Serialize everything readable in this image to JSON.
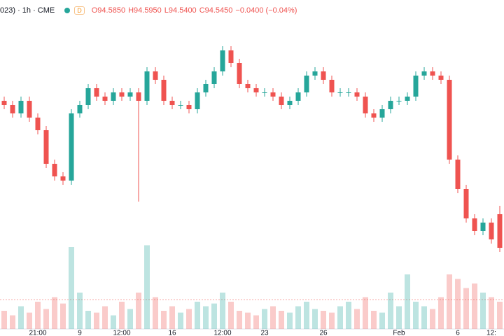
{
  "chart_data": {
    "type": "candlestick",
    "symbol": "023) · 1h · CME",
    "badge": "D",
    "quote": [
      "O94.5850",
      "H94.5950",
      "L94.5400",
      "C94.5450",
      "−0.0400 (−0.04%)"
    ],
    "up_color": "#26a69a",
    "down_color": "#ef5350",
    "categories": [
      null,
      null,
      null,
      null,
      "21:00",
      null,
      null,
      null,
      null,
      "9",
      null,
      null,
      null,
      null,
      "12:00",
      null,
      null,
      null,
      null,
      null,
      "16",
      null,
      null,
      null,
      null,
      null,
      "12:00",
      null,
      null,
      null,
      null,
      "23",
      null,
      null,
      null,
      null,
      null,
      null,
      "26",
      null,
      null,
      null,
      null,
      null,
      null,
      null,
      null,
      "Feb",
      null,
      null,
      null,
      null,
      null,
      null,
      "6",
      null,
      null,
      null,
      "12:",
      null
    ],
    "open": [
      94.72,
      94.715,
      94.705,
      94.72,
      94.7,
      94.685,
      94.645,
      94.63,
      94.625,
      94.705,
      94.715,
      94.735,
      94.725,
      94.72,
      94.73,
      94.725,
      94.73,
      94.72,
      94.755,
      94.745,
      94.72,
      94.715,
      94.715,
      94.71,
      94.73,
      94.74,
      94.755,
      94.78,
      94.765,
      94.74,
      94.735,
      94.73,
      94.73,
      94.725,
      94.715,
      94.72,
      94.73,
      94.75,
      94.755,
      94.745,
      94.73,
      94.73,
      94.73,
      94.725,
      94.705,
      94.7,
      94.71,
      94.72,
      94.72,
      94.725,
      94.75,
      94.755,
      94.75,
      94.745,
      94.65,
      94.615,
      94.58,
      94.565,
      94.575,
      94.585
    ],
    "high": [
      94.725,
      94.72,
      94.725,
      94.725,
      94.705,
      94.69,
      94.65,
      94.635,
      94.71,
      94.72,
      94.74,
      94.74,
      94.73,
      94.735,
      94.735,
      94.735,
      94.735,
      94.76,
      94.76,
      94.75,
      94.725,
      94.72,
      94.72,
      94.735,
      94.745,
      94.76,
      94.785,
      94.785,
      94.77,
      94.745,
      94.74,
      94.735,
      94.735,
      94.73,
      94.725,
      94.735,
      94.755,
      94.76,
      94.76,
      94.75,
      94.735,
      94.735,
      94.735,
      94.73,
      94.71,
      94.715,
      94.725,
      94.725,
      94.73,
      94.755,
      94.76,
      94.76,
      94.755,
      94.75,
      94.655,
      94.62,
      94.585,
      94.58,
      94.58,
      94.595
    ],
    "low": [
      94.71,
      94.7,
      94.7,
      94.695,
      94.68,
      94.64,
      94.625,
      94.62,
      94.62,
      94.7,
      94.71,
      94.72,
      94.715,
      94.715,
      94.72,
      94.72,
      94.6,
      94.715,
      94.74,
      94.715,
      94.71,
      94.71,
      94.705,
      94.705,
      94.725,
      94.735,
      94.75,
      94.76,
      94.735,
      94.73,
      94.725,
      94.725,
      94.72,
      94.71,
      94.71,
      94.715,
      94.725,
      94.745,
      94.74,
      94.725,
      94.725,
      94.725,
      94.72,
      94.7,
      94.695,
      94.695,
      94.705,
      94.715,
      94.715,
      94.72,
      94.745,
      94.745,
      94.74,
      94.645,
      94.61,
      94.575,
      94.56,
      94.56,
      94.55,
      94.54
    ],
    "close": [
      94.715,
      94.705,
      94.72,
      94.7,
      94.685,
      94.645,
      94.63,
      94.625,
      94.705,
      94.715,
      94.735,
      94.725,
      94.72,
      94.73,
      94.725,
      94.73,
      94.72,
      94.755,
      94.745,
      94.72,
      94.715,
      94.715,
      94.71,
      94.73,
      94.74,
      94.755,
      94.78,
      94.765,
      94.74,
      94.735,
      94.73,
      94.73,
      94.725,
      94.715,
      94.72,
      94.73,
      94.75,
      94.755,
      94.745,
      94.73,
      94.73,
      94.73,
      94.725,
      94.705,
      94.7,
      94.71,
      94.72,
      94.72,
      94.725,
      94.75,
      94.755,
      94.75,
      94.745,
      94.65,
      94.615,
      94.58,
      94.565,
      94.575,
      94.555,
      94.545
    ],
    "volume": [
      20,
      15,
      25,
      18,
      30,
      22,
      35,
      28,
      90,
      40,
      20,
      18,
      25,
      15,
      30,
      22,
      40,
      92,
      35,
      20,
      25,
      18,
      22,
      30,
      25,
      28,
      40,
      30,
      20,
      18,
      15,
      22,
      25,
      20,
      18,
      25,
      30,
      22,
      20,
      18,
      25,
      30,
      22,
      35,
      20,
      18,
      40,
      25,
      60,
      30,
      25,
      22,
      35,
      60,
      55,
      45,
      50,
      40,
      35,
      30
    ],
    "ylim": [
      94.44,
      94.84
    ],
    "volume_lim": [
      0,
      100
    ]
  }
}
